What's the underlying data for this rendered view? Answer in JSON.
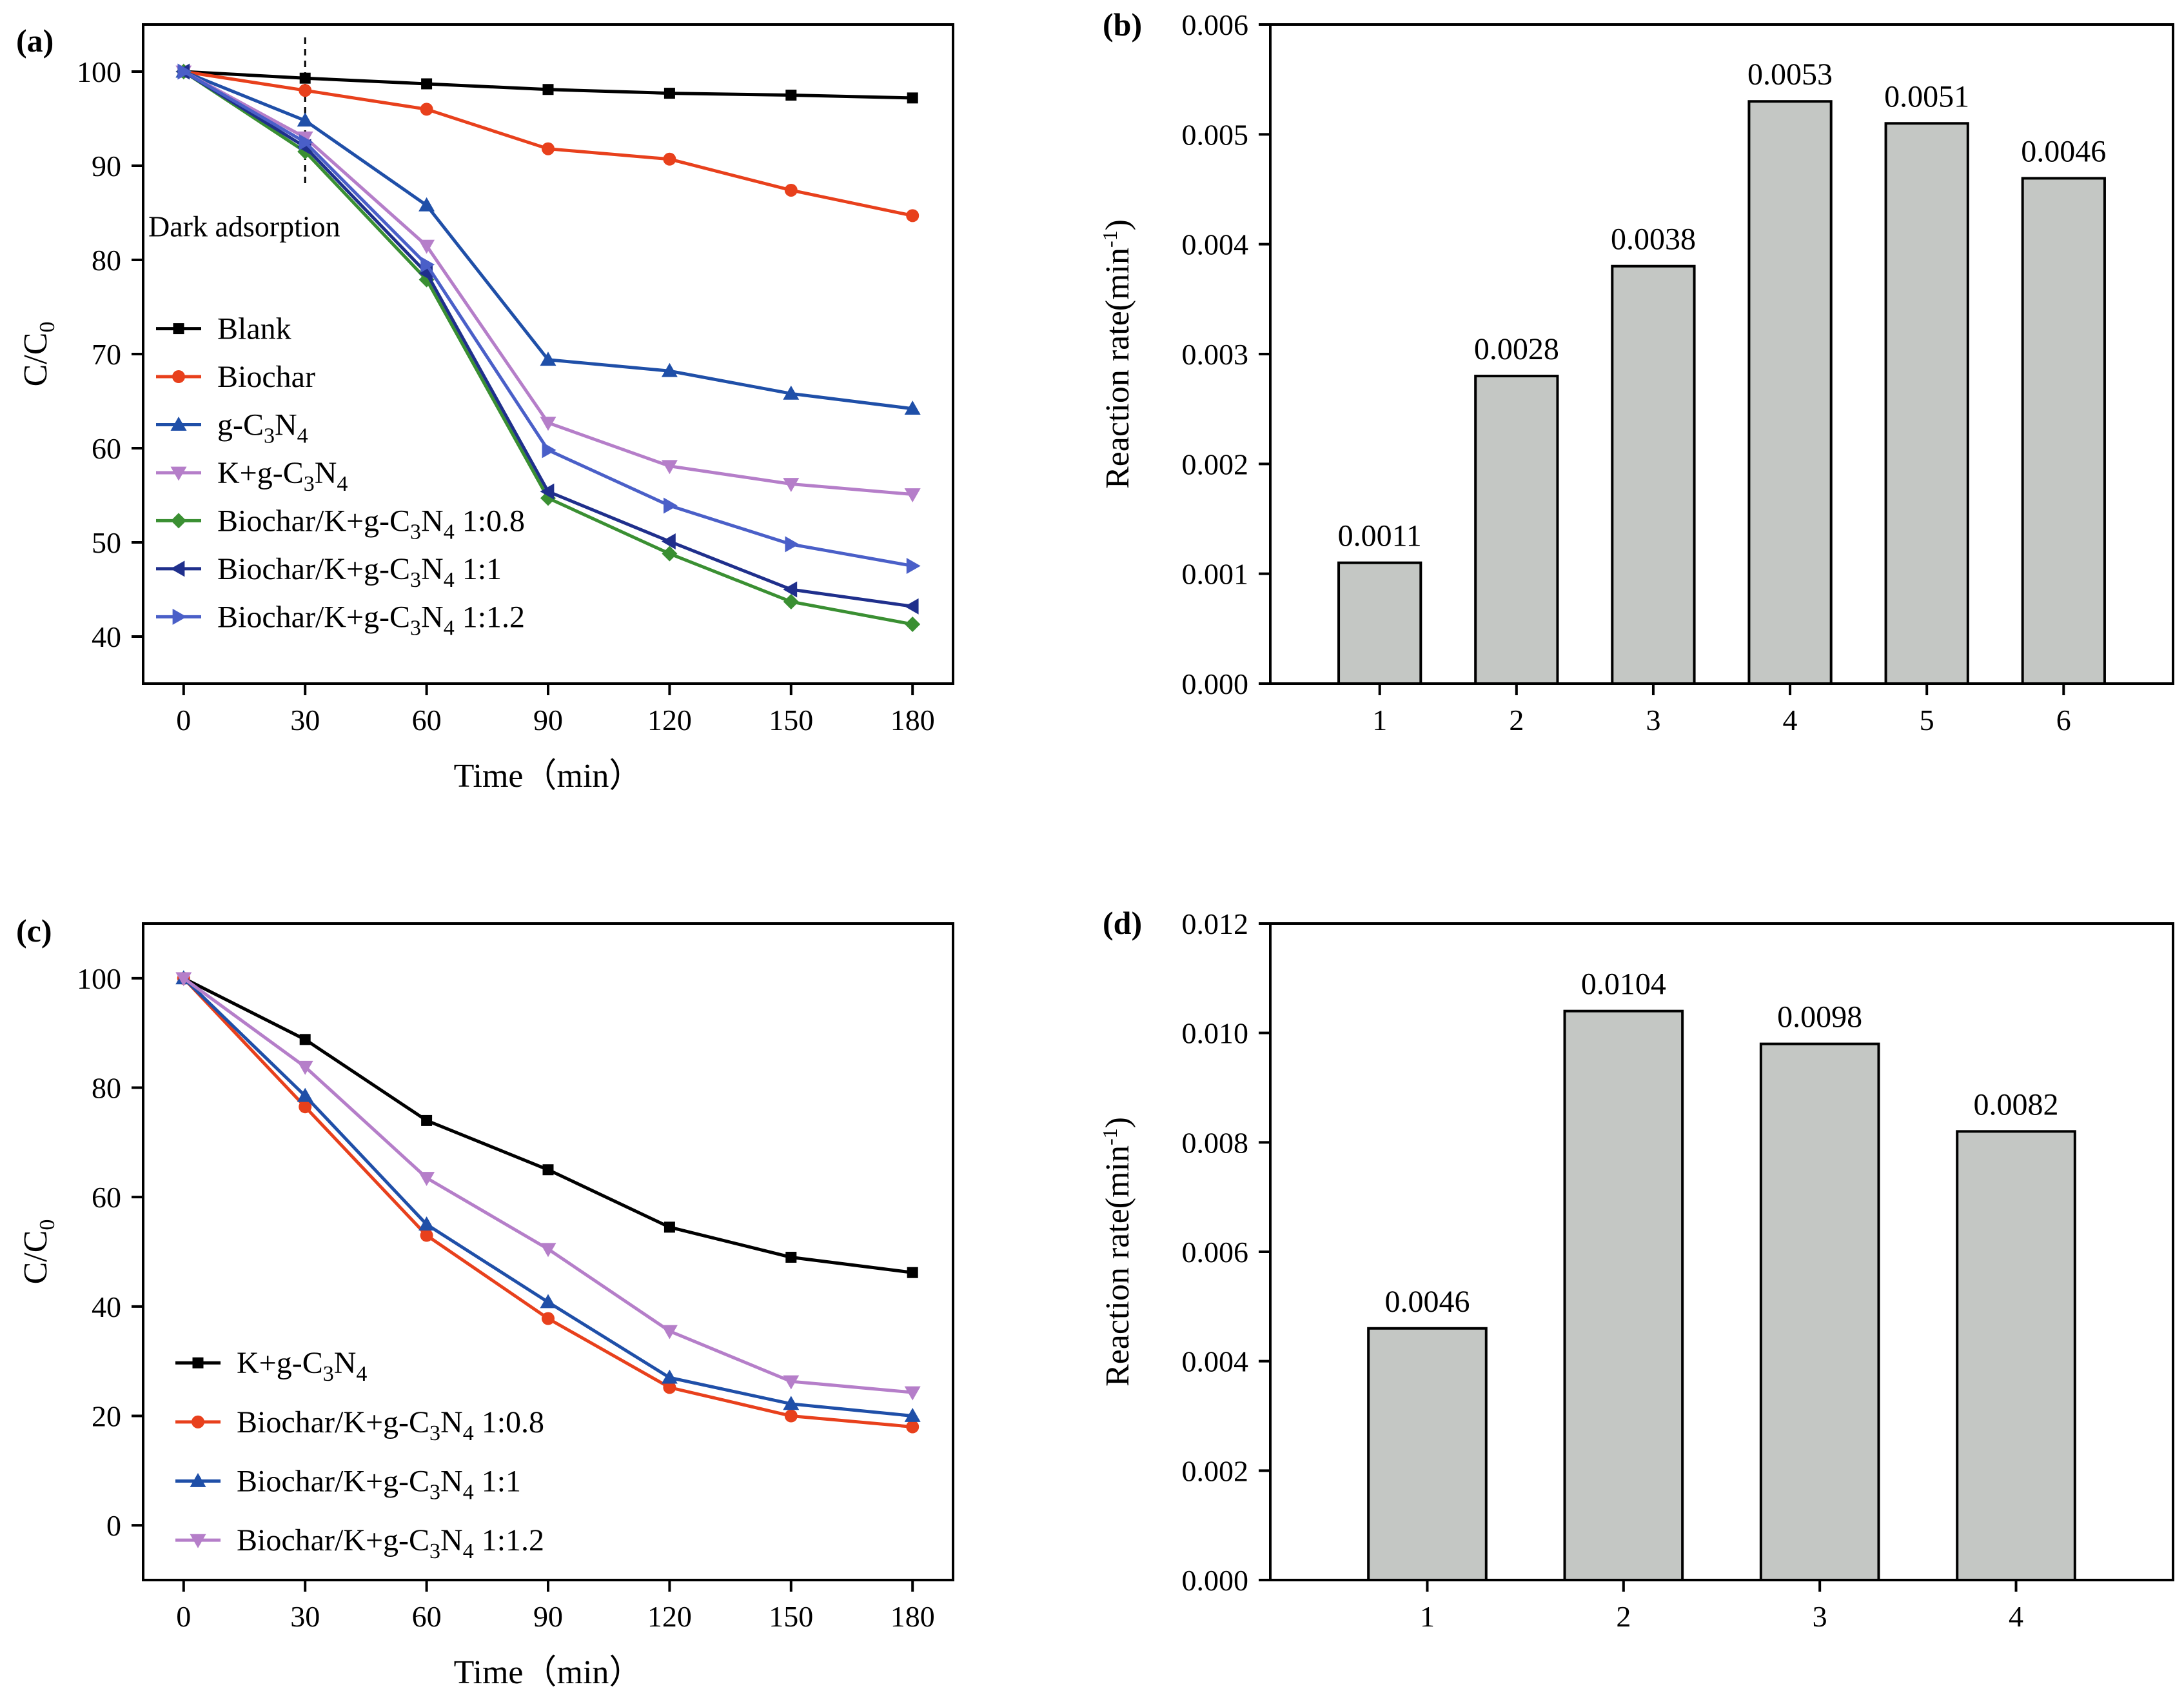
{
  "chart_data": [
    {
      "id": "a",
      "type": "line",
      "panel_label": "(a)",
      "xlabel": "Time（min）",
      "ylabel_main": "C/C",
      "ylabel_sub": "0",
      "xlim": [
        -10,
        190
      ],
      "ylim": [
        35,
        105
      ],
      "xticks": [
        0,
        30,
        60,
        90,
        120,
        150,
        180
      ],
      "yticks": [
        40,
        50,
        60,
        70,
        80,
        90,
        100
      ],
      "x": [
        0,
        30,
        60,
        90,
        120,
        150,
        180
      ],
      "annotation": {
        "text": "Dark adsorption",
        "x": 30
      },
      "series": [
        {
          "name": "Blank",
          "label_parts": [
            "Blank"
          ],
          "color": "#000000",
          "marker": "square",
          "values": [
            100,
            99.3,
            98.7,
            98.1,
            97.7,
            97.5,
            97.2
          ]
        },
        {
          "name": "Biochar",
          "label_parts": [
            "Biochar"
          ],
          "color": "#e8401c",
          "marker": "circle",
          "values": [
            100,
            98,
            96,
            91.8,
            90.7,
            87.4,
            84.7
          ]
        },
        {
          "name": "g-C3N4",
          "label_parts": [
            "g-C",
            "3",
            "N",
            "4"
          ],
          "color": "#1f4fa8",
          "marker": "triangle-up",
          "values": [
            100,
            94.8,
            85.8,
            69.4,
            68.2,
            65.8,
            64.2
          ]
        },
        {
          "name": "K+g-C3N4",
          "label_parts": [
            "K+g-C",
            "3",
            "N",
            "4"
          ],
          "color": "#b57ec9",
          "marker": "triangle-down",
          "values": [
            100,
            93,
            81.5,
            62.7,
            58.1,
            56.2,
            55.1
          ]
        },
        {
          "name": "Biochar/K+g-C3N4 1:0.8",
          "label_parts": [
            "Biochar/K+g-C",
            "3",
            "N",
            "4",
            " 1:0.8"
          ],
          "color": "#3a8f32",
          "marker": "diamond",
          "values": [
            100,
            91.5,
            77.9,
            54.7,
            48.8,
            43.7,
            41.3
          ]
        },
        {
          "name": "Biochar/K+g-C3N4 1:1",
          "label_parts": [
            "Biochar/K+g-C",
            "3",
            "N",
            "4",
            " 1:1"
          ],
          "color": "#1f2f8c",
          "marker": "triangle-left",
          "values": [
            100,
            92,
            78.6,
            55.4,
            50.1,
            45,
            43.2
          ]
        },
        {
          "name": "Biochar/K+g-C3N4 1:1.2",
          "label_parts": [
            "Biochar/K+g-C",
            "3",
            "N",
            "4",
            " 1:1.2"
          ],
          "color": "#4a5fc8",
          "marker": "triangle-right",
          "values": [
            100,
            92.5,
            79.5,
            59.8,
            53.9,
            49.8,
            47.5
          ]
        }
      ]
    },
    {
      "id": "b",
      "type": "bar",
      "panel_label": "(b)",
      "ylabel_main": "Reaction rate(min",
      "ylabel_sup": "-1",
      "ylabel_end": ")",
      "categories": [
        "1",
        "2",
        "3",
        "4",
        "5",
        "6"
      ],
      "values": [
        0.0011,
        0.0028,
        0.0038,
        0.0053,
        0.0051,
        0.0046
      ],
      "value_labels": [
        "0.0011",
        "0.0028",
        "0.0038",
        "0.0053",
        "0.0051",
        "0.0046"
      ],
      "ylim": [
        0,
        0.006
      ],
      "yticks": [
        0,
        0.001,
        0.002,
        0.003,
        0.004,
        0.005,
        0.006
      ],
      "ytick_labels": [
        "0.000",
        "0.001",
        "0.002",
        "0.003",
        "0.004",
        "0.005",
        "0.006"
      ],
      "bar_color": "#c4c7c4"
    },
    {
      "id": "c",
      "type": "line",
      "panel_label": "(c)",
      "xlabel": "Time（min）",
      "ylabel_main": "C/C",
      "ylabel_sub": "0",
      "xlim": [
        -10,
        190
      ],
      "ylim": [
        -10,
        110
      ],
      "xticks": [
        0,
        30,
        60,
        90,
        120,
        150,
        180
      ],
      "yticks": [
        0,
        20,
        40,
        60,
        80,
        100
      ],
      "x": [
        0,
        30,
        60,
        90,
        120,
        150,
        180
      ],
      "series": [
        {
          "name": "K+g-C3N4",
          "label_parts": [
            "K+g-C",
            "3",
            "N",
            "4"
          ],
          "color": "#000000",
          "marker": "square",
          "values": [
            100,
            88.8,
            74,
            65,
            54.5,
            49,
            46.2
          ]
        },
        {
          "name": "Biochar/K+g-C3N4 1:0.8",
          "label_parts": [
            "Biochar/K+g-C",
            "3",
            "N",
            "4",
            " 1:0.8"
          ],
          "color": "#e8401c",
          "marker": "circle",
          "values": [
            100,
            76.5,
            53,
            37.8,
            25.2,
            20,
            18
          ]
        },
        {
          "name": "Biochar/K+g-C3N4 1:1",
          "label_parts": [
            "Biochar/K+g-C",
            "3",
            "N",
            "4",
            " 1:1"
          ],
          "color": "#1f4fa8",
          "marker": "triangle-up",
          "values": [
            100,
            78.5,
            55,
            40.8,
            27,
            22.2,
            20
          ]
        },
        {
          "name": "Biochar/K+g-C3N4 1:1.2",
          "label_parts": [
            "Biochar/K+g-C",
            "3",
            "N",
            "4",
            " 1:1.2"
          ],
          "color": "#b57ec9",
          "marker": "triangle-down",
          "values": [
            100,
            83.8,
            63.5,
            50.5,
            35.5,
            26.3,
            24.3
          ]
        }
      ]
    },
    {
      "id": "d",
      "type": "bar",
      "panel_label": "(d)",
      "ylabel_main": "Reaction rate(min",
      "ylabel_sup": "-1",
      "ylabel_end": ")",
      "categories": [
        "1",
        "2",
        "3",
        "4"
      ],
      "values": [
        0.0046,
        0.0104,
        0.0098,
        0.0082
      ],
      "value_labels": [
        "0.0046",
        "0.0104",
        "0.0098",
        "0.0082"
      ],
      "ylim": [
        0,
        0.012
      ],
      "yticks": [
        0,
        0.002,
        0.004,
        0.006,
        0.008,
        0.01,
        0.012
      ],
      "ytick_labels": [
        "0.000",
        "0.002",
        "0.004",
        "0.006",
        "0.008",
        "0.010",
        "0.012"
      ],
      "bar_color": "#c4c7c4"
    }
  ]
}
